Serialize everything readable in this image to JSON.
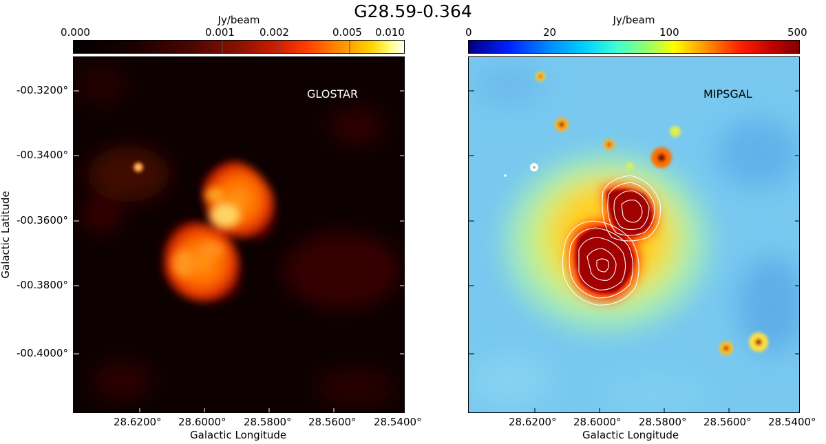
{
  "figure": {
    "title": "G28.59-0.364"
  },
  "left_panel": {
    "label": "GLOSTAR",
    "colorbar": {
      "units": "Jy/beam",
      "ticks": [
        "0.000",
        "0.001",
        "0.002",
        "0.005",
        "0.010"
      ],
      "colormap": "hot"
    },
    "x_axis": {
      "title": "Galactic Longitude",
      "ticks": [
        "28.6200°",
        "28.6000°",
        "28.5800°",
        "28.5600°",
        "28.5400°"
      ]
    },
    "y_axis": {
      "title": "Galactic Latitude",
      "ticks": [
        "-00.3200°",
        "-00.3400°",
        "-00.3600°",
        "-00.3800°",
        "-00.4000°"
      ]
    }
  },
  "right_panel": {
    "label": "MIPSGAL",
    "colorbar": {
      "units": "Jy/beam",
      "ticks": [
        "0",
        "20",
        "100",
        "500"
      ],
      "colormap": "jet"
    },
    "x_axis": {
      "title": "Galactic Longitude",
      "ticks": [
        "28.6200°",
        "28.6000°",
        "28.5800°",
        "28.5600°",
        "28.5400°"
      ]
    },
    "overlay": "white contours of GLOSTAR emission"
  },
  "colors": {
    "hot_low": "#0d0000",
    "hot_high": "#ffffff",
    "jet_background": "#78c8f0",
    "jet_peak": "#800000"
  }
}
